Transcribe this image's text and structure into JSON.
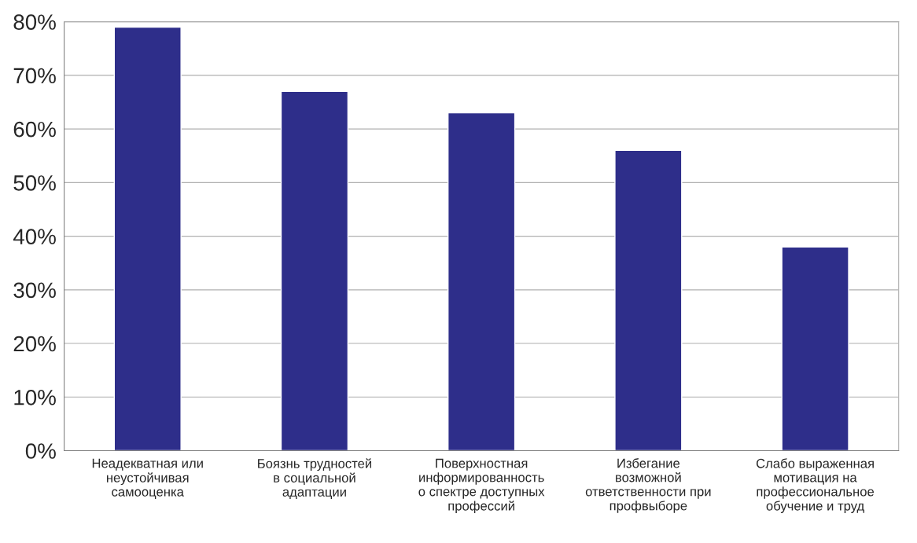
{
  "chart_data": {
    "type": "bar",
    "categories": [
      "Неадекватная или\nнеустойчивая\nсамооценка",
      "Боязнь трудностей\nв социальной\nадаптации",
      "Поверхностная\nинформированность\nо спектре доступных\nпрофессий",
      "Избегание\nвозможной\nответственности при\nпрофвыборе",
      "Слабо выраженная\nмотивация на\nпрофессиональное\nобучение и труд"
    ],
    "values": [
      79,
      67,
      63,
      56,
      38
    ],
    "color": "#2e2e8a",
    "ylim": [
      0,
      80
    ],
    "yticks": [
      {
        "value": 0,
        "label": "0%"
      },
      {
        "value": 10,
        "label": "10%"
      },
      {
        "value": 20,
        "label": "20%"
      },
      {
        "value": 30,
        "label": "30%"
      },
      {
        "value": 40,
        "label": "40%"
      },
      {
        "value": 50,
        "label": "50%"
      },
      {
        "value": 60,
        "label": "60%"
      },
      {
        "value": 70,
        "label": "70%"
      },
      {
        "value": 80,
        "label": "80%"
      }
    ],
    "grid": "y"
  }
}
